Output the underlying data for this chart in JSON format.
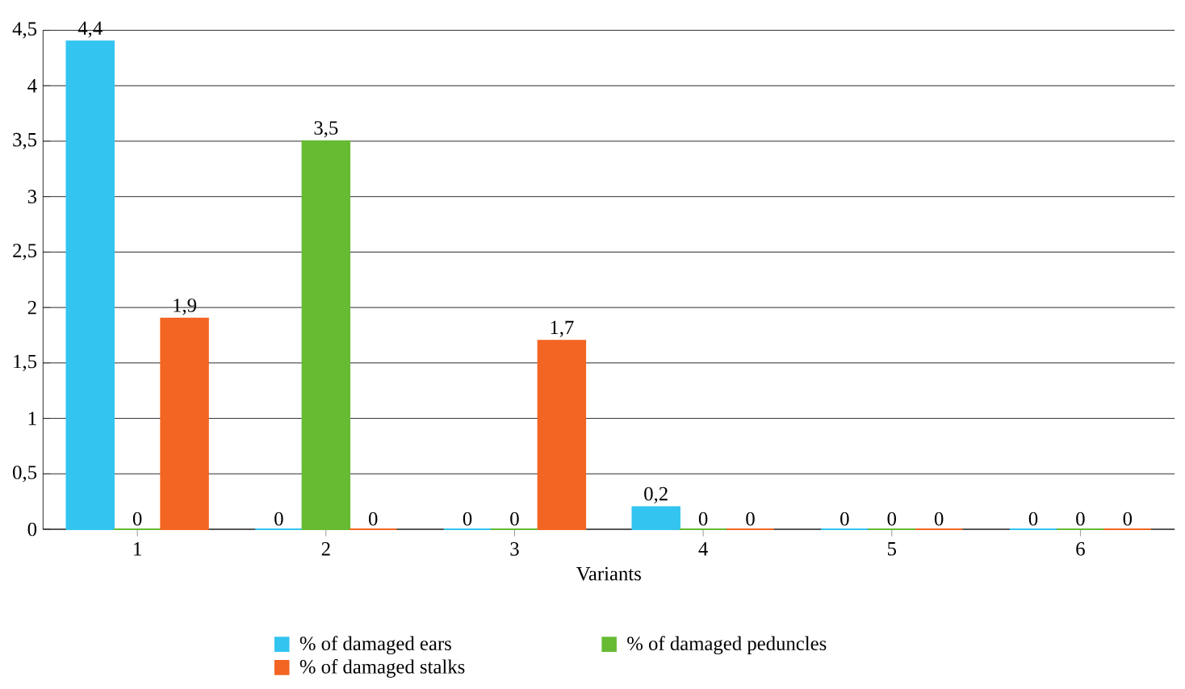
{
  "chart_data": {
    "type": "bar",
    "xlabel": "Variants",
    "categories": [
      "1",
      "2",
      "3",
      "4",
      "5",
      "6"
    ],
    "series": [
      {
        "name": "% of damaged ears",
        "color": "#33c4f0",
        "values": [
          4.4,
          0,
          0,
          0.2,
          0,
          0
        ],
        "value_labels": [
          "4,4",
          "0",
          "0",
          "0,2",
          "0",
          "0"
        ]
      },
      {
        "name": "% of damaged peduncles",
        "color": "#66bb33",
        "values": [
          0,
          3.5,
          0,
          0,
          0,
          0
        ],
        "value_labels": [
          "0",
          "3,5",
          "0",
          "0",
          "0",
          "0"
        ]
      },
      {
        "name": "% of damaged stalks",
        "color": "#f26522",
        "values": [
          1.9,
          0,
          1.7,
          0,
          0,
          0
        ],
        "value_labels": [
          "1,9",
          "0",
          "1,7",
          "0",
          "0",
          "0"
        ]
      }
    ],
    "ylim": [
      0,
      4.5
    ],
    "yticks": [
      0,
      {
        "value": 0.5,
        "label": "0,5"
      },
      1,
      {
        "value": 1.5,
        "label": "1,5"
      },
      2,
      {
        "value": 2.5,
        "label": "2,5"
      },
      3,
      {
        "value": 3.5,
        "label": "3,5"
      },
      4,
      {
        "value": 4.5,
        "label": "4,5"
      }
    ],
    "grid": "y",
    "legend": "bottom"
  }
}
